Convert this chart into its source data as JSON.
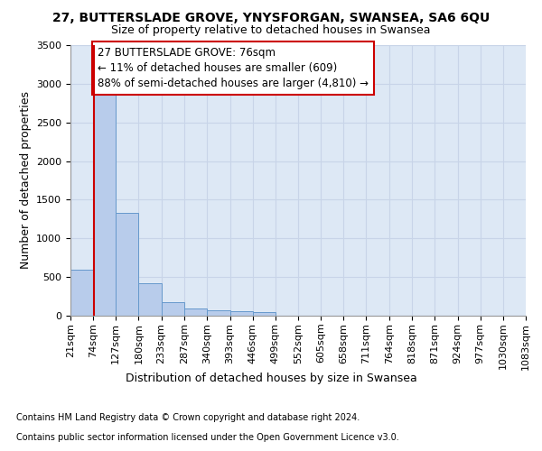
{
  "title1": "27, BUTTERSLADE GROVE, YNYSFORGAN, SWANSEA, SA6 6QU",
  "title2": "Size of property relative to detached houses in Swansea",
  "xlabel": "Distribution of detached houses by size in Swansea",
  "ylabel": "Number of detached properties",
  "footnote1": "Contains HM Land Registry data © Crown copyright and database right 2024.",
  "footnote2": "Contains public sector information licensed under the Open Government Licence v3.0.",
  "annotation_line1": "27 BUTTERSLADE GROVE: 76sqm",
  "annotation_line2": "← 11% of detached houses are smaller (609)",
  "annotation_line3": "88% of semi-detached houses are larger (4,810) →",
  "property_size": 76,
  "bin_edges": [
    21,
    74,
    127,
    180,
    233,
    287,
    340,
    393,
    446,
    499,
    552,
    605,
    658,
    711,
    764,
    818,
    871,
    924,
    977,
    1030,
    1083
  ],
  "bar_heights": [
    600,
    2900,
    1330,
    420,
    175,
    90,
    65,
    60,
    50,
    0,
    0,
    0,
    0,
    0,
    0,
    0,
    0,
    0,
    0,
    0
  ],
  "bar_color": "#b8cceb",
  "bar_edge_color": "#6699cc",
  "red_line_color": "#cc0000",
  "annotation_box_color": "#cc0000",
  "grid_color": "#c8d4e8",
  "background_color": "#dde8f5",
  "ylim": [
    0,
    3500
  ],
  "yticks": [
    0,
    500,
    1000,
    1500,
    2000,
    2500,
    3000,
    3500
  ],
  "title1_fontsize": 10,
  "title2_fontsize": 9,
  "annotation_fontsize": 8.5,
  "ylabel_fontsize": 9,
  "xlabel_fontsize": 9,
  "xtick_fontsize": 8,
  "ytick_fontsize": 8,
  "footnote_fontsize": 7
}
